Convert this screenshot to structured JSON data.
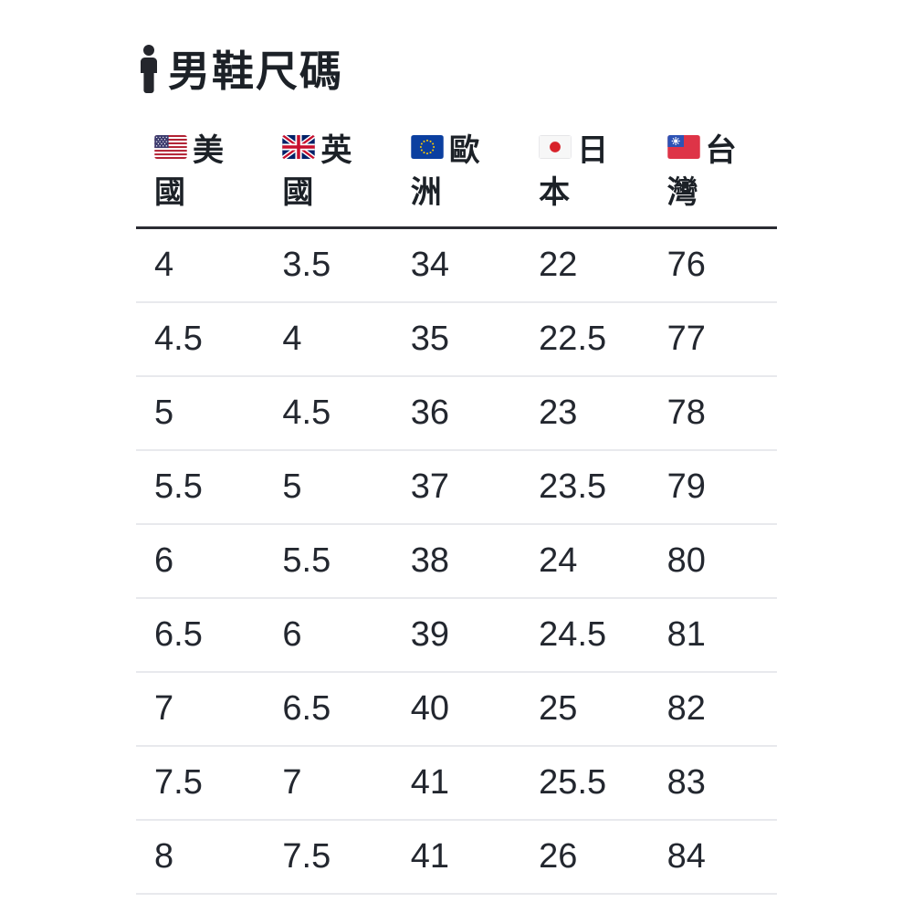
{
  "page": {
    "title": "男鞋尺碼",
    "title_icon": "man-icon",
    "background": "#ffffff"
  },
  "size_table": {
    "columns": [
      {
        "id": "us",
        "flag_icon": "us-flag",
        "label": "美國"
      },
      {
        "id": "uk",
        "flag_icon": "uk-flag",
        "label": "英國"
      },
      {
        "id": "eu",
        "flag_icon": "eu-flag",
        "label": "歐洲"
      },
      {
        "id": "jp",
        "flag_icon": "jp-flag",
        "label": "日本"
      },
      {
        "id": "tw",
        "flag_icon": "tw-flag",
        "label": "台灣"
      }
    ],
    "rows": [
      [
        "4",
        "3.5",
        "34",
        "22",
        "76"
      ],
      [
        "4.5",
        "4",
        "35",
        "22.5",
        "77"
      ],
      [
        "5",
        "4.5",
        "36",
        "23",
        "78"
      ],
      [
        "5.5",
        "5",
        "37",
        "23.5",
        "79"
      ],
      [
        "6",
        "5.5",
        "38",
        "24",
        "80"
      ],
      [
        "6.5",
        "6",
        "39",
        "24.5",
        "81"
      ],
      [
        "7",
        "6.5",
        "40",
        "25",
        "82"
      ],
      [
        "7.5",
        "7",
        "41",
        "25.5",
        "83"
      ],
      [
        "8",
        "7.5",
        "41",
        "26",
        "84"
      ]
    ]
  },
  "colors": {
    "text": "#23272f",
    "title": "#1c2127",
    "header_border": "#2b2c33",
    "row_border": "#e8e9ed"
  }
}
